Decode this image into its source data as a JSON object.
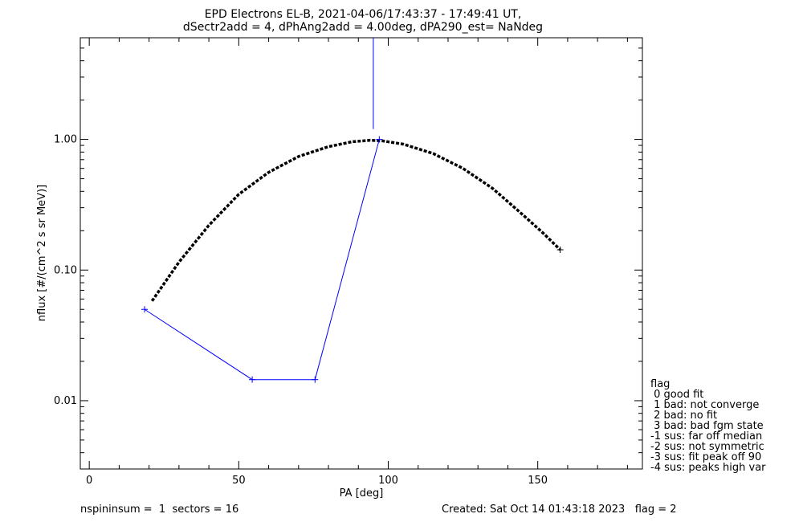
{
  "chart_data": {
    "type": "scatter",
    "title_line1": "EPD Electrons EL-B, 2021-04-06/17:43:37 - 17:49:41 UT,",
    "title_line2": "dSectr2add = 4, dPhAng2add = 4.00deg, dPA290_est=   NaNdeg",
    "xlabel": "PA [deg]",
    "ylabel": "nflux [#/(cm^2 s sr MeV)]",
    "xlim": [
      -3,
      185
    ],
    "ylim": [
      0.003,
      6.0
    ],
    "yscale": "log",
    "x_ticks": [
      0,
      50,
      100,
      150
    ],
    "x_tick_labels": [
      "0",
      "50",
      "100",
      "150"
    ],
    "y_ticks": [
      0.01,
      0.1,
      1.0
    ],
    "y_tick_labels": [
      "0.01",
      "0.10",
      "1.00"
    ],
    "grid": false,
    "series": [
      {
        "style": "plus-markers-with-line",
        "color": "#0000ff",
        "x": [
          18.5,
          54.5,
          75.5,
          97.0
        ],
        "y": [
          0.05,
          0.0145,
          0.0145,
          1.0
        ]
      },
      {
        "style": "dashed-fit",
        "color": "#000000",
        "x": [
          21,
          30,
          40,
          50,
          60,
          70,
          80,
          88,
          94,
          98,
          105,
          115,
          125,
          135,
          145,
          152,
          157.5
        ],
        "y": [
          0.058,
          0.115,
          0.22,
          0.38,
          0.56,
          0.74,
          0.88,
          0.96,
          0.985,
          0.975,
          0.92,
          0.78,
          0.6,
          0.42,
          0.265,
          0.19,
          0.143
        ]
      }
    ],
    "vertical_line": {
      "x": 95,
      "y_from": 1.2,
      "y_to": 6.0,
      "color": "#0000ff"
    },
    "legend": {
      "placement": "right",
      "items": [
        "flag",
        " 0 good fit",
        " 1 bad: not converge",
        " 2 bad: no fit",
        " 3 bad: bad fgm state",
        "-1 sus: far off median",
        "-2 sus: not symmetric",
        "-3 sus: fit peak off 90",
        "-4 sus: peaks high var"
      ]
    }
  },
  "footer": {
    "left": "nspininsum =  1  sectors = 16",
    "right": "Created: Sat Oct 14 01:43:18 2023   flag = 2"
  }
}
